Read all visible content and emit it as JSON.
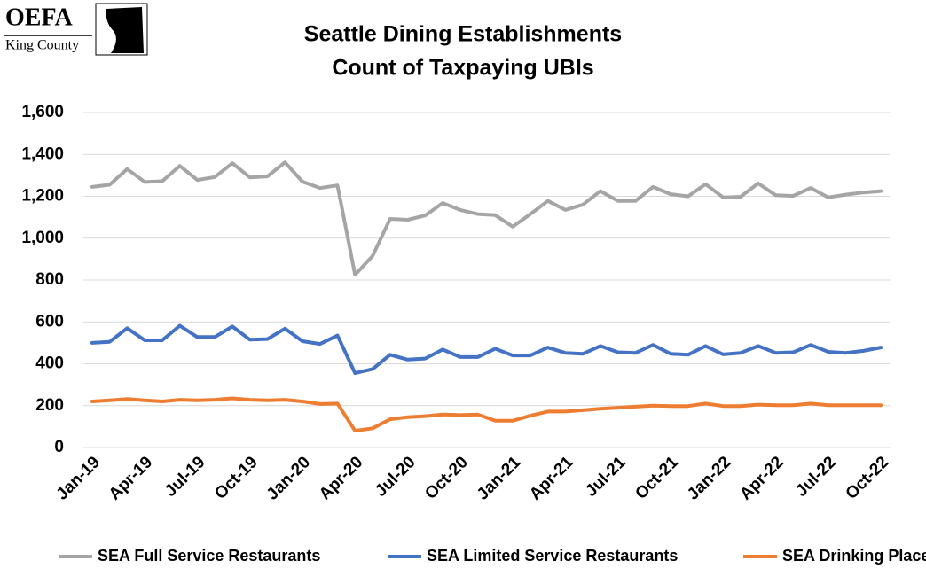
{
  "logo": {
    "name": "OEFA",
    "subtitle": "King County"
  },
  "chart_data": {
    "type": "line",
    "title": [
      "Seattle Dining Establishments",
      "Count of Taxpaying UBIs"
    ],
    "categories": [
      "Jan-19",
      null,
      null,
      "Apr-19",
      null,
      null,
      "Jul-19",
      null,
      null,
      "Oct-19",
      null,
      null,
      "Jan-20",
      null,
      null,
      "Apr-20",
      null,
      null,
      "Jul-20",
      null,
      null,
      "Oct-20",
      null,
      null,
      "Jan-21",
      null,
      null,
      "Apr-21",
      null,
      null,
      "Jul-21",
      null,
      null,
      "Oct-21",
      null,
      null,
      "Jan-22",
      null,
      null,
      "Apr-22",
      null,
      null,
      "Jul-22",
      null,
      null,
      "Oct-22"
    ],
    "series": [
      {
        "name": "SEA Full Service Restaurants",
        "color": "#a5a5a5",
        "values": [
          1245,
          1255,
          1330,
          1268,
          1272,
          1345,
          1278,
          1292,
          1358,
          1290,
          1295,
          1362,
          1270,
          1240,
          1252,
          825,
          915,
          1092,
          1088,
          1108,
          1168,
          1135,
          1115,
          1110,
          1055,
          1115,
          1178,
          1135,
          1160,
          1225,
          1178,
          1178,
          1245,
          1210,
          1200,
          1258,
          1195,
          1198,
          1262,
          1205,
          1202,
          1240,
          1195,
          1208,
          1218,
          1225
        ]
      },
      {
        "name": "SEA Limited Service Restaurants",
        "color": "#4472c4",
        "values": [
          500,
          505,
          570,
          512,
          512,
          582,
          528,
          528,
          578,
          515,
          518,
          568,
          508,
          495,
          535,
          355,
          375,
          443,
          420,
          425,
          468,
          432,
          432,
          472,
          440,
          440,
          478,
          452,
          448,
          485,
          455,
          452,
          490,
          448,
          443,
          485,
          445,
          452,
          485,
          452,
          455,
          490,
          457,
          452,
          462,
          478
        ]
      },
      {
        "name": "SEA Drinking Places",
        "color": "#ed7d31",
        "values": [
          220,
          225,
          232,
          225,
          220,
          228,
          225,
          228,
          235,
          228,
          225,
          228,
          220,
          208,
          210,
          80,
          92,
          135,
          145,
          150,
          158,
          155,
          158,
          128,
          128,
          152,
          172,
          172,
          178,
          185,
          190,
          195,
          200,
          198,
          198,
          210,
          198,
          198,
          205,
          202,
          202,
          210,
          202,
          202,
          202,
          202
        ]
      }
    ],
    "ylim": [
      0,
      1600
    ],
    "yticks": [
      0,
      200,
      400,
      600,
      800,
      {
        "value": 1000,
        "label": "1,000"
      },
      {
        "value": 1200,
        "label": "1,200"
      },
      {
        "value": 1400,
        "label": "1,400"
      },
      {
        "value": 1600,
        "label": "1,600"
      }
    ],
    "grid": true,
    "legend": "bottom"
  }
}
